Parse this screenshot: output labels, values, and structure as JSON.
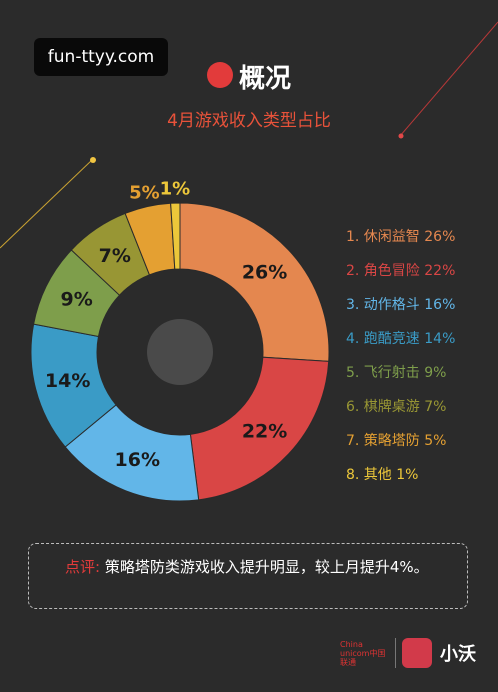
{
  "watermark": "fun-ttyy.com",
  "header": {
    "title": "概况",
    "subtitle": "4月游戏收入类型占比"
  },
  "chart_data": {
    "type": "pie",
    "donut": true,
    "categories": [
      "休闲益智",
      "角色冒险",
      "动作格斗",
      "跑酷竞速",
      "飞行射击",
      "棋牌桌游",
      "策略塔防",
      "其他"
    ],
    "values": [
      26,
      22,
      16,
      14,
      9,
      7,
      5,
      1
    ],
    "value_labels": [
      "26%",
      "22%",
      "16%",
      "14%",
      "9%",
      "7%",
      "5%",
      "1%"
    ],
    "colors": [
      "#e4874f",
      "#d94645",
      "#62b6e8",
      "#3a9bc6",
      "#7e9e4b",
      "#989634",
      "#e4a032",
      "#ecc73a"
    ],
    "legend": {
      "position": "right",
      "items": [
        "1. 休闲益智 26%",
        "2. 角色冒险 22%",
        "3. 动作格斗 16%",
        "4. 跑酷竞速 14%",
        "5. 飞行射击 9%",
        "6. 棋牌桌游 7%",
        "7. 策略塔防 5%",
        "8. 其他 1%"
      ]
    }
  },
  "note": {
    "label": "点评:",
    "text": "策略塔防类游戏收入提升明显，较上月提升4%。"
  },
  "footer": {
    "logo_line1": "China unicom中国联通",
    "brand": "小沃"
  }
}
